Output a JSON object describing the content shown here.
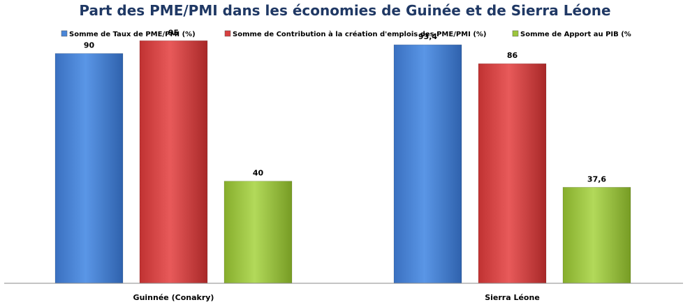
{
  "chart_data": {
    "type": "bar",
    "title": "Part des PME/PMI dans les économies de Guinée et de Sierra Léone",
    "categories": [
      "Guinnée (Conakry)",
      "Sierra Léone"
    ],
    "series": [
      {
        "name": "Somme de Taux de PME/PMI (%)",
        "values": [
          90,
          93.4
        ],
        "labels": [
          "90",
          "93,4"
        ],
        "color": "#4a86d8"
      },
      {
        "name": "Somme de Contribution à la création d'emplois des PME/PMI (%)",
        "values": [
          95,
          86
        ],
        "labels": [
          "95",
          "86"
        ],
        "color": "#d84040"
      },
      {
        "name": "Somme de Apport au PIB (%",
        "values": [
          40,
          37.6
        ],
        "labels": [
          "40",
          "37,6"
        ],
        "color": "#9cc63c"
      }
    ],
    "ylim": [
      0,
      100
    ],
    "legend_position": "top",
    "grid": false
  }
}
